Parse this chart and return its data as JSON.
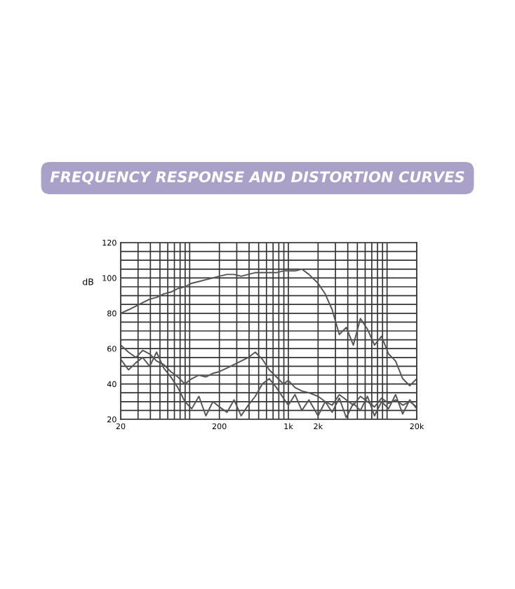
{
  "chart_data": {
    "type": "line",
    "title": "FREQUENCY RESPONSE AND DISTORTION CURVES",
    "ylabel": "dB",
    "x": [
      20,
      24,
      28.5,
      33.4,
      39.4,
      46.2,
      54.6,
      64.4,
      75.8,
      89.4,
      105,
      124,
      146,
      172,
      200,
      239,
      282,
      332,
      392,
      462,
      545,
      641,
      756,
      891,
      1000,
      1167,
      1370,
      1616,
      2000,
      2360,
      2780,
      3280,
      3860,
      4550,
      5370,
      6330,
      7460,
      8790,
      10360,
      12200,
      14400,
      16980,
      20000
    ],
    "series": [
      {
        "color": "#555555",
        "values": [
          80,
          82,
          84,
          86,
          88,
          89,
          91,
          92,
          94,
          95,
          97,
          98,
          99,
          100,
          101,
          102,
          102,
          101,
          102,
          103,
          103,
          103,
          103,
          104,
          104,
          104,
          105,
          102,
          97,
          91,
          82,
          68,
          72,
          62,
          77,
          71,
          62,
          67,
          57,
          53,
          43,
          39,
          43
        ]
      },
      {
        "color": "#555555",
        "values": [
          62,
          58,
          55,
          59,
          57,
          53,
          51,
          47,
          44,
          40,
          43,
          45,
          44,
          46,
          47,
          49,
          51,
          53,
          55,
          58,
          54,
          48,
          44,
          40,
          42,
          38,
          36,
          35,
          33,
          30,
          28,
          34,
          31,
          28,
          33,
          30,
          27,
          32,
          29,
          31,
          28,
          30,
          27
        ]
      },
      {
        "color": "#555555",
        "values": [
          54,
          48,
          52,
          55,
          50,
          58,
          49,
          44,
          38,
          30,
          26,
          33,
          22,
          30,
          27,
          24,
          31,
          22,
          28,
          33,
          40,
          43,
          38,
          32,
          28,
          34,
          25,
          31,
          22,
          30,
          24,
          32,
          21,
          29,
          25,
          33,
          22,
          30,
          26,
          34,
          23,
          31,
          26
        ]
      }
    ],
    "log": "x",
    "xlim": [
      20,
      20000
    ],
    "ylim": [
      20,
      120
    ],
    "xticks": [
      {
        "value": 20,
        "label": "20"
      },
      {
        "value": 30,
        "label": null
      },
      {
        "value": 40,
        "label": null
      },
      {
        "value": 50,
        "label": null
      },
      {
        "value": 60,
        "label": null
      },
      {
        "value": 70,
        "label": null
      },
      {
        "value": 80,
        "label": null
      },
      {
        "value": 90,
        "label": null
      },
      {
        "value": 100,
        "label": null
      },
      {
        "value": 200,
        "label": "200"
      },
      {
        "value": 300,
        "label": null
      },
      {
        "value": 400,
        "label": null
      },
      {
        "value": 500,
        "label": null
      },
      {
        "value": 600,
        "label": null
      },
      {
        "value": 700,
        "label": null
      },
      {
        "value": 800,
        "label": null
      },
      {
        "value": 900,
        "label": null
      },
      {
        "value": 1000,
        "label": "1k"
      },
      {
        "value": 2000,
        "label": "2k"
      },
      {
        "value": 3000,
        "label": null
      },
      {
        "value": 4000,
        "label": null
      },
      {
        "value": 5000,
        "label": null
      },
      {
        "value": 6000,
        "label": null
      },
      {
        "value": 7000,
        "label": null
      },
      {
        "value": 8000,
        "label": null
      },
      {
        "value": 9000,
        "label": null
      },
      {
        "value": 10000,
        "label": null
      },
      {
        "value": 20000,
        "label": "20k"
      }
    ],
    "yticks": [
      20,
      {
        "value": 25,
        "label": null
      },
      {
        "value": 30,
        "label": null
      },
      {
        "value": 35,
        "label": null
      },
      40,
      {
        "value": 45,
        "label": null
      },
      {
        "value": 50,
        "label": null
      },
      {
        "value": 55,
        "label": null
      },
      60,
      {
        "value": 65,
        "label": null
      },
      {
        "value": 70,
        "label": null
      },
      {
        "value": 75,
        "label": null
      },
      80,
      {
        "value": 85,
        "label": null
      },
      {
        "value": 90,
        "label": null
      },
      {
        "value": 95,
        "label": null
      },
      100,
      {
        "value": 105,
        "label": null
      },
      {
        "value": 110,
        "label": null
      },
      {
        "value": 115,
        "label": null
      },
      120
    ],
    "grid": true,
    "marker": "none",
    "line_style": "solid"
  }
}
